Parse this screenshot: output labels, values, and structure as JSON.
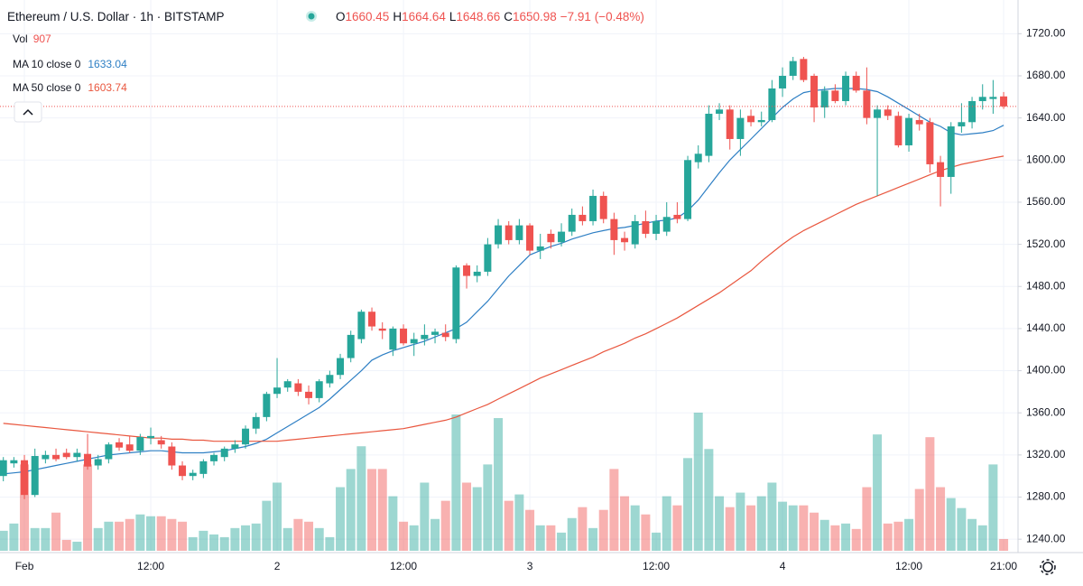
{
  "chart_data": {
    "type": "candlestick",
    "title": "Ethereum / U.S. Dollar · 1h · BITSTAMP",
    "ohlc_letters": [
      "O",
      "H",
      "L",
      "C"
    ],
    "change_label": "−7.91 (−0.48%)",
    "up_color": "#26a69a",
    "down_color": "#ef5350",
    "categories": [
      null,
      null,
      "Feb",
      null,
      null,
      null,
      null,
      null,
      null,
      null,
      null,
      null,
      null,
      null,
      "12:00",
      null,
      null,
      null,
      null,
      null,
      null,
      null,
      null,
      null,
      null,
      null,
      "2",
      null,
      null,
      null,
      null,
      null,
      null,
      null,
      null,
      null,
      null,
      null,
      "12:00",
      null,
      null,
      null,
      null,
      null,
      null,
      null,
      null,
      null,
      null,
      null,
      "3",
      null,
      null,
      null,
      null,
      null,
      null,
      null,
      null,
      null,
      null,
      null,
      "12:00",
      null,
      null,
      null,
      null,
      null,
      null,
      null,
      null,
      null,
      null,
      null,
      "4",
      null,
      null,
      null,
      null,
      null,
      null,
      null,
      null,
      null,
      null,
      null,
      "12:00",
      null,
      null,
      null,
      null,
      null,
      null,
      null,
      null,
      "21:00"
    ],
    "open": [
      1300,
      1312,
      1315,
      1282,
      1316,
      1320,
      1322,
      1318,
      1321,
      1310,
      1316,
      1332,
      1330,
      1324,
      1336,
      1334,
      1328,
      1310,
      1300,
      1302,
      1314,
      1318,
      1326,
      1330,
      1345,
      1356,
      1378,
      1384,
      1388,
      1380,
      1374,
      1388,
      1396,
      1412,
      1430,
      1456,
      1440,
      1420,
      1440,
      1426,
      1430,
      1434,
      1436,
      1430,
      1500,
      1490,
      1494,
      1520,
      1538,
      1524,
      1538,
      1514,
      1530,
      1522,
      1532,
      1548,
      1542,
      1566,
      1544,
      1526,
      1520,
      1542,
      1530,
      1532,
      1548,
      1544,
      1598,
      1604,
      1644,
      1648,
      1620,
      1642,
      1636,
      1638,
      1668,
      1680,
      1696,
      1680,
      1650,
      1666,
      1656,
      1680,
      1666,
      1640,
      1648,
      1642,
      1614,
      1638,
      1636,
      1598,
      1584,
      1632,
      1636,
      1656,
      1658,
      1660.45
    ],
    "high": [
      1318,
      1318,
      1320,
      1326,
      1324,
      1326,
      1326,
      1326,
      1340,
      1320,
      1332,
      1336,
      1338,
      1340,
      1346,
      1338,
      1332,
      1314,
      1306,
      1316,
      1322,
      1328,
      1334,
      1348,
      1360,
      1380,
      1412,
      1392,
      1392,
      1386,
      1392,
      1400,
      1416,
      1438,
      1458,
      1460,
      1446,
      1442,
      1444,
      1436,
      1444,
      1440,
      1444,
      1500,
      1502,
      1500,
      1526,
      1544,
      1542,
      1544,
      1540,
      1530,
      1534,
      1540,
      1554,
      1556,
      1572,
      1570,
      1550,
      1532,
      1548,
      1552,
      1548,
      1560,
      1560,
      1604,
      1614,
      1652,
      1654,
      1652,
      1648,
      1648,
      1646,
      1676,
      1688,
      1698,
      1698,
      1682,
      1670,
      1672,
      1684,
      1684,
      1688,
      1652,
      1652,
      1646,
      1644,
      1644,
      1640,
      1604,
      1636,
      1654,
      1660,
      1672,
      1676,
      1664.64
    ],
    "low": [
      1295,
      1308,
      1278,
      1280,
      1312,
      1314,
      1316,
      1314,
      1306,
      1306,
      1312,
      1324,
      1322,
      1320,
      1330,
      1326,
      1306,
      1296,
      1296,
      1298,
      1310,
      1314,
      1322,
      1326,
      1340,
      1352,
      1374,
      1380,
      1376,
      1368,
      1370,
      1384,
      1392,
      1408,
      1426,
      1438,
      1430,
      1414,
      1424,
      1414,
      1424,
      1426,
      1428,
      1426,
      1478,
      1484,
      1490,
      1516,
      1520,
      1520,
      1510,
      1506,
      1516,
      1518,
      1528,
      1538,
      1538,
      1540,
      1510,
      1514,
      1516,
      1526,
      1524,
      1528,
      1540,
      1542,
      1592,
      1598,
      1638,
      1610,
      1604,
      1632,
      1632,
      1636,
      1660,
      1676,
      1674,
      1636,
      1640,
      1654,
      1652,
      1664,
      1634,
      1566,
      1638,
      1612,
      1608,
      1628,
      1588,
      1556,
      1568,
      1626,
      1630,
      1648,
      1644,
      1648.66
    ],
    "close": [
      1315,
      1315,
      1282,
      1319,
      1320,
      1316,
      1318,
      1322,
      1309,
      1316,
      1330,
      1327,
      1324,
      1337,
      1338,
      1330,
      1310,
      1300,
      1303,
      1314,
      1320,
      1326,
      1330,
      1345,
      1356,
      1378,
      1384,
      1390,
      1380,
      1374,
      1390,
      1396,
      1412,
      1434,
      1456,
      1442,
      1438,
      1440,
      1426,
      1430,
      1434,
      1437,
      1432,
      1498,
      1490,
      1494,
      1520,
      1538,
      1524,
      1538,
      1514,
      1518,
      1522,
      1532,
      1548,
      1542,
      1566,
      1544,
      1524,
      1522,
      1542,
      1530,
      1542,
      1546,
      1544,
      1600,
      1606,
      1644,
      1648,
      1620,
      1640,
      1636,
      1638,
      1668,
      1680,
      1694,
      1676,
      1650,
      1666,
      1656,
      1680,
      1666,
      1640,
      1648,
      1642,
      1614,
      1640,
      1634,
      1596,
      1584,
      1632,
      1636,
      1656,
      1660,
      1660,
      1650.98
    ],
    "volume": {
      "name": "Vol",
      "values": [
        1540,
        2100,
        6650,
        1750,
        1750,
        2940,
        840,
        700,
        6650,
        1750,
        2240,
        2240,
        2450,
        2800,
        2660,
        2660,
        2450,
        2240,
        1050,
        1540,
        1260,
        1050,
        1750,
        1960,
        2100,
        3850,
        5250,
        1750,
        2450,
        2240,
        1750,
        1050,
        4900,
        6300,
        8050,
        6300,
        6300,
        4200,
        2240,
        1960,
        5250,
        2450,
        3850,
        10500,
        5250,
        4900,
        6650,
        10220,
        3850,
        4340,
        3150,
        1960,
        1960,
        1400,
        2520,
        3360,
        1750,
        3150,
        6300,
        4200,
        3500,
        2800,
        1400,
        4200,
        3500,
        7140,
        10640,
        7840,
        4200,
        3360,
        4480,
        3500,
        4200,
        5250,
        3780,
        3500,
        3500,
        2940,
        2380,
        1960,
        2100,
        1680,
        4900,
        8960,
        2100,
        2240,
        2450,
        4760,
        8750,
        4900,
        4060,
        3290,
        2450,
        1960,
        6650,
        907
      ]
    },
    "series": [
      {
        "name": "MA 10 close 0",
        "color": "#2e7fc4",
        "values": [
          1302,
          1303,
          1304,
          1306,
          1308,
          1310,
          1312,
          1314,
          1316,
          1318,
          1320,
          1321,
          1322,
          1323,
          1324,
          1324,
          1323,
          1322,
          1322,
          1322,
          1323,
          1324,
          1326,
          1328,
          1331,
          1335,
          1341,
          1347,
          1353,
          1359,
          1365,
          1373,
          1382,
          1391,
          1400,
          1410,
          1415,
          1419,
          1422,
          1425,
          1428,
          1432,
          1436,
          1440,
          1446,
          1456,
          1466,
          1478,
          1490,
          1500,
          1510,
          1514,
          1518,
          1521,
          1525,
          1528,
          1531,
          1533,
          1535,
          1536,
          1538,
          1540,
          1542,
          1543,
          1545,
          1552,
          1562,
          1575,
          1588,
          1600,
          1610,
          1620,
          1630,
          1640,
          1650,
          1658,
          1664,
          1666,
          1667,
          1668,
          1668,
          1668,
          1667,
          1665,
          1660,
          1654,
          1648,
          1642,
          1636,
          1632,
          1626,
          1624,
          1625,
          1626,
          1628,
          1633.04
        ]
      },
      {
        "name": "MA 50 close 0",
        "color": "#e9573f",
        "values": [
          1350,
          1349,
          1348,
          1347,
          1346,
          1345,
          1344,
          1343,
          1342,
          1341,
          1340,
          1339,
          1338,
          1337,
          1336,
          1336,
          1335,
          1335,
          1334,
          1334,
          1333,
          1333,
          1333,
          1333,
          1333,
          1333,
          1333,
          1334,
          1335,
          1336,
          1337,
          1338,
          1339,
          1340,
          1341,
          1342,
          1343,
          1344,
          1345,
          1347,
          1349,
          1351,
          1353,
          1356,
          1360,
          1364,
          1368,
          1373,
          1378,
          1383,
          1388,
          1393,
          1397,
          1401,
          1405,
          1409,
          1413,
          1418,
          1422,
          1426,
          1431,
          1435,
          1440,
          1445,
          1450,
          1456,
          1462,
          1468,
          1474,
          1481,
          1488,
          1495,
          1504,
          1512,
          1520,
          1527,
          1533,
          1538,
          1543,
          1548,
          1553,
          1558,
          1562,
          1566,
          1570,
          1574,
          1578,
          1582,
          1586,
          1590,
          1593,
          1596,
          1598,
          1600,
          1602,
          1603.74
        ]
      }
    ],
    "ylim": [
      1229,
      1752
    ],
    "yticks": [
      {
        "value": 1240,
        "label": "1240.00"
      },
      {
        "value": 1280,
        "label": "1280.00"
      },
      {
        "value": 1320,
        "label": "1320.00"
      },
      {
        "value": 1360,
        "label": "1360.00"
      },
      {
        "value": 1400,
        "label": "1400.00"
      },
      {
        "value": 1440,
        "label": "1440.00"
      },
      {
        "value": 1480,
        "label": "1480.00"
      },
      {
        "value": 1520,
        "label": "1520.00"
      },
      {
        "value": 1560,
        "label": "1560.00"
      },
      {
        "value": 1600,
        "label": "1600.00"
      },
      {
        "value": 1640,
        "label": "1640.00"
      },
      {
        "value": 1680,
        "label": "1680.00"
      },
      {
        "value": 1720,
        "label": "1720.00"
      }
    ],
    "grid": true
  }
}
